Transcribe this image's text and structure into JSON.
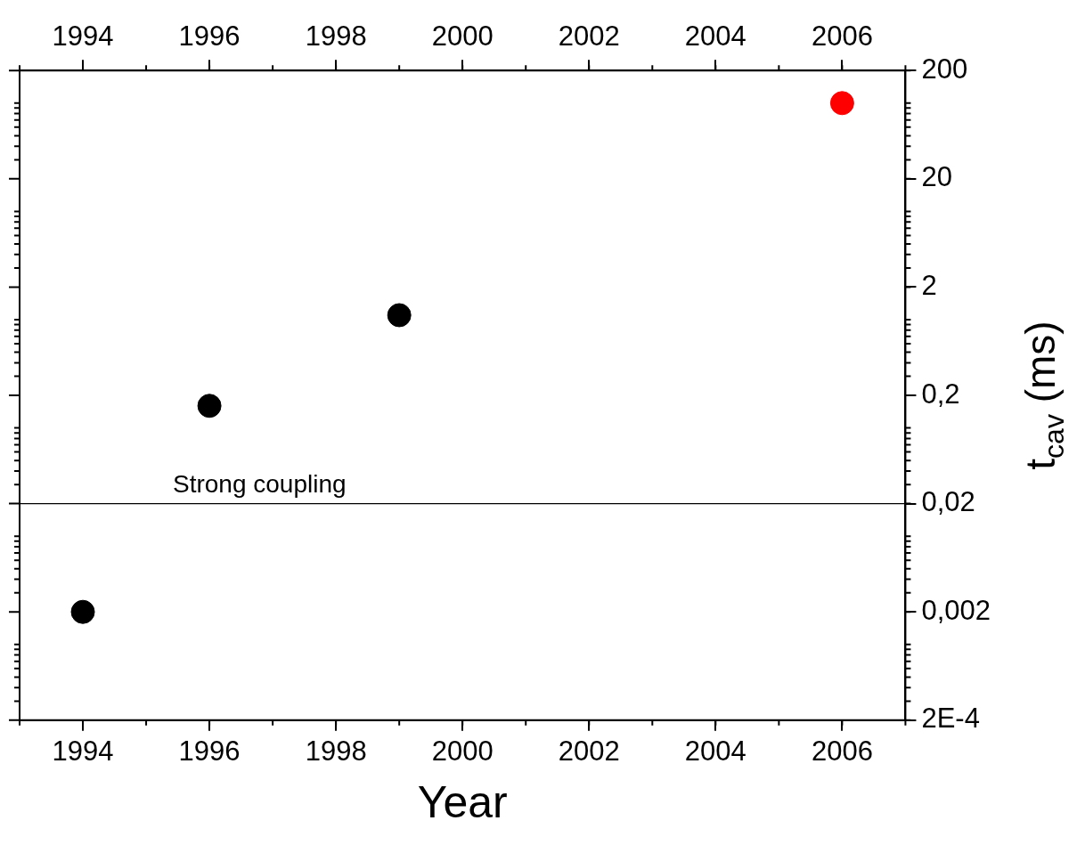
{
  "chart_data": {
    "type": "scatter",
    "xlabel": "Year",
    "ylabel": "t$_{cav}$ (ms)",
    "x": [
      1994,
      1996,
      1999,
      2006
    ],
    "values": [
      0.002,
      0.16,
      1.1,
      100
    ],
    "colors": [
      "#000000",
      "#000000",
      "#000000",
      "#ff0000"
    ],
    "marker": "circle",
    "log": "y",
    "grid": false,
    "legend": false,
    "xlim": [
      1993,
      2007
    ],
    "xticks": [
      1994,
      1996,
      1998,
      2000,
      2002,
      2004,
      2006
    ],
    "x2lim": [
      1993,
      2007
    ],
    "x2ticks": [
      1994,
      1996,
      1998,
      2000,
      2002,
      2004,
      2006
    ],
    "ylim": [
      0.0002,
      200
    ],
    "yticks": [
      {
        "value": 0.0002,
        "label": "2E-4"
      },
      {
        "value": 0.002,
        "label": "0,002"
      },
      {
        "value": 0.02,
        "label": "0,02"
      },
      {
        "value": 0.2,
        "label": "0,2"
      },
      2,
      20,
      200
    ],
    "ref_lines": [
      {
        "axis": "y",
        "value": 0.02,
        "label": "Strong coupling",
        "color": "#000000"
      }
    ]
  }
}
